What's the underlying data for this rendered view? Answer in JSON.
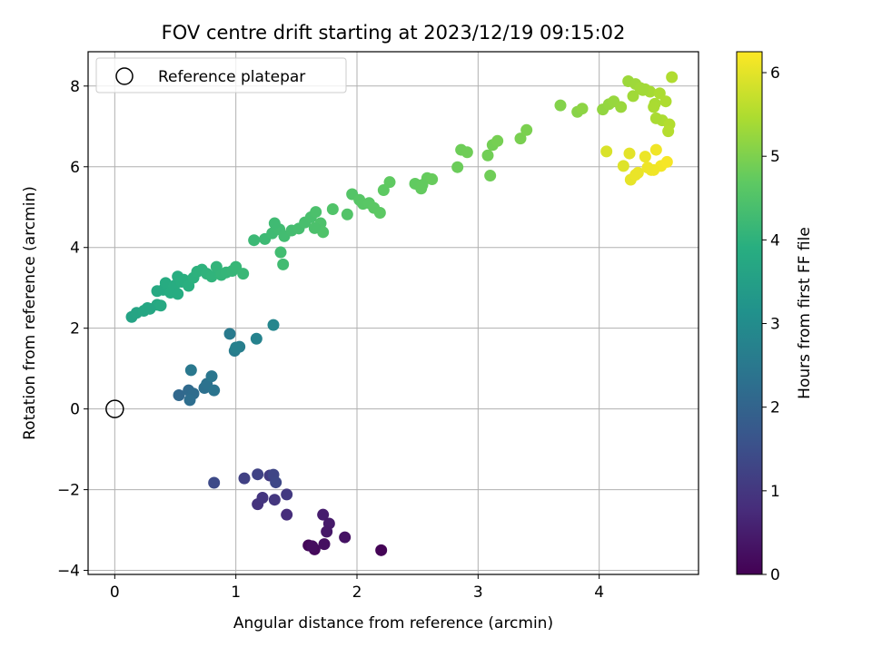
{
  "chart_data": {
    "type": "scatter",
    "title": "FOV centre drift starting at 2023/12/19 09:15:02",
    "xlabel": "Angular distance from reference (arcmin)",
    "ylabel": "Rotation from reference (arcmin)",
    "xlim": [
      -0.22,
      4.82
    ],
    "ylim": [
      -4.1,
      8.85
    ],
    "xticks": [
      0,
      1,
      2,
      3,
      4
    ],
    "yticks": [
      -4,
      -2,
      0,
      2,
      4,
      6,
      8
    ],
    "xtick_labels": [
      "0",
      "1",
      "2",
      "3",
      "4"
    ],
    "ytick_labels": [
      "−4",
      "−2",
      "0",
      "2",
      "4",
      "6",
      "8"
    ],
    "grid": true,
    "legend": {
      "location": "upper-left",
      "entries": [
        {
          "label": "Reference platepar",
          "marker": "hollow-circle"
        }
      ]
    },
    "reference_point": {
      "label": "Reference platepar",
      "x": 0,
      "y": 0
    },
    "colorbar": {
      "label": "Hours from first FF file",
      "colormap": "viridis",
      "range": [
        0,
        6.25
      ],
      "ticks": [
        0,
        1,
        2,
        3,
        4,
        5,
        6
      ],
      "tick_labels": [
        "0",
        "1",
        "2",
        "3",
        "4",
        "5",
        "6"
      ]
    },
    "series": [
      {
        "x": [
          1.6,
          1.65,
          1.63,
          1.73,
          1.9,
          2.2,
          1.72,
          1.77,
          1.75,
          1.42,
          1.18,
          1.22,
          1.32,
          1.42,
          1.28,
          1.07,
          1.18,
          1.31,
          1.33,
          0.82,
          0.53,
          0.61,
          0.65,
          0.62,
          0.74,
          0.76,
          0.82,
          0.8,
          0.95,
          0.99,
          1.03,
          1.0,
          1.17,
          1.31,
          0.63,
          0.14,
          0.18,
          0.24,
          0.27,
          0.35,
          0.38,
          0.4,
          0.42,
          0.46,
          0.49,
          0.52,
          0.55,
          0.57,
          0.61,
          0.65,
          0.68,
          0.72,
          0.76,
          0.8,
          0.84,
          0.88,
          0.92,
          0.97,
          1.0,
          1.06,
          0.35,
          0.29,
          0.52,
          1.15,
          1.24,
          1.3,
          1.36,
          1.4,
          1.46,
          1.52,
          1.57,
          1.62,
          1.66,
          1.7,
          1.72,
          1.8,
          1.92,
          1.96,
          2.02,
          2.05,
          2.1,
          2.14,
          2.19,
          2.22,
          2.27,
          1.37,
          1.39,
          1.32,
          1.65,
          2.48,
          2.53,
          2.58,
          2.62,
          2.83,
          2.86,
          2.91,
          3.08,
          3.12,
          3.16,
          3.35,
          3.4,
          3.1,
          2.54,
          3.68,
          3.82,
          3.86,
          4.03,
          4.08,
          4.12,
          4.18,
          4.24,
          4.3,
          4.34,
          4.38,
          4.42,
          4.46,
          4.5,
          4.55,
          4.6,
          4.28,
          4.36,
          4.45,
          4.52,
          4.58,
          4.47,
          4.57,
          4.06,
          4.2,
          4.25,
          4.32,
          4.38,
          4.43,
          4.47,
          4.51,
          4.56,
          4.26,
          4.3,
          4.45,
          4.4
        ],
        "y": [
          -3.38,
          -3.48,
          -3.4,
          -3.35,
          -3.18,
          -3.5,
          -2.62,
          -2.84,
          -3.04,
          -2.62,
          -2.36,
          -2.2,
          -2.25,
          -2.12,
          -1.65,
          -1.72,
          -1.62,
          -1.63,
          -1.82,
          -1.83,
          0.34,
          0.46,
          0.38,
          0.22,
          0.52,
          0.62,
          0.46,
          0.81,
          1.86,
          1.44,
          1.54,
          1.52,
          1.74,
          2.08,
          0.96,
          2.28,
          2.38,
          2.43,
          2.5,
          2.58,
          2.56,
          2.95,
          3.12,
          2.88,
          3.05,
          3.28,
          3.15,
          3.2,
          3.05,
          3.25,
          3.4,
          3.45,
          3.35,
          3.28,
          3.52,
          3.32,
          3.38,
          3.42,
          3.52,
          3.35,
          2.92,
          2.48,
          2.85,
          4.18,
          4.21,
          4.35,
          4.45,
          4.28,
          4.42,
          4.47,
          4.62,
          4.75,
          4.88,
          4.6,
          4.38,
          4.95,
          4.82,
          5.32,
          5.18,
          5.08,
          5.1,
          4.98,
          4.86,
          5.42,
          5.62,
          3.88,
          3.58,
          4.6,
          4.48,
          5.58,
          5.46,
          5.72,
          5.69,
          5.99,
          6.42,
          6.36,
          6.28,
          6.54,
          6.64,
          6.7,
          6.91,
          5.78,
          5.55,
          7.52,
          7.36,
          7.44,
          7.42,
          7.55,
          7.62,
          7.48,
          8.12,
          8.05,
          7.95,
          7.92,
          7.86,
          7.56,
          7.82,
          7.62,
          8.22,
          7.75,
          7.9,
          7.48,
          7.15,
          7.05,
          7.2,
          6.88,
          6.38,
          6.02,
          6.33,
          5.85,
          6.25,
          5.92,
          6.42,
          6.02,
          6.12,
          5.68,
          5.8,
          5.92,
          5.98
        ],
        "hours": [
          0.1,
          0.15,
          0.2,
          0.25,
          0.3,
          0.05,
          0.5,
          0.45,
          0.4,
          0.8,
          0.9,
          0.95,
          1.0,
          1.05,
          1.1,
          1.2,
          1.25,
          1.3,
          1.35,
          1.4,
          2.1,
          2.15,
          2.2,
          2.25,
          2.3,
          2.35,
          2.4,
          2.45,
          2.55,
          2.6,
          2.65,
          2.7,
          2.75,
          2.85,
          2.5,
          3.6,
          3.65,
          3.7,
          3.72,
          3.75,
          3.78,
          3.8,
          3.82,
          3.84,
          3.86,
          3.88,
          3.9,
          3.92,
          3.94,
          3.96,
          3.98,
          4.0,
          4.02,
          4.04,
          4.06,
          4.08,
          4.1,
          4.12,
          4.14,
          4.16,
          3.76,
          3.7,
          3.85,
          4.2,
          4.22,
          4.25,
          4.28,
          4.3,
          4.32,
          4.35,
          4.38,
          4.4,
          4.42,
          4.45,
          4.48,
          4.5,
          4.52,
          4.55,
          4.58,
          4.6,
          4.62,
          4.64,
          4.66,
          4.68,
          4.7,
          4.3,
          4.28,
          4.25,
          4.42,
          4.72,
          4.74,
          4.76,
          4.78,
          4.82,
          4.84,
          4.86,
          4.88,
          4.9,
          4.92,
          4.95,
          4.97,
          4.86,
          4.74,
          5.05,
          5.1,
          5.15,
          5.2,
          5.22,
          5.25,
          5.28,
          5.3,
          5.32,
          5.35,
          5.38,
          5.4,
          5.42,
          5.45,
          5.48,
          5.5,
          5.34,
          5.36,
          5.44,
          5.46,
          5.52,
          5.44,
          5.55,
          5.9,
          5.95,
          6.0,
          6.05,
          6.08,
          6.1,
          6.12,
          6.15,
          6.18,
          6.03,
          6.06,
          6.12,
          6.1
        ]
      }
    ]
  }
}
